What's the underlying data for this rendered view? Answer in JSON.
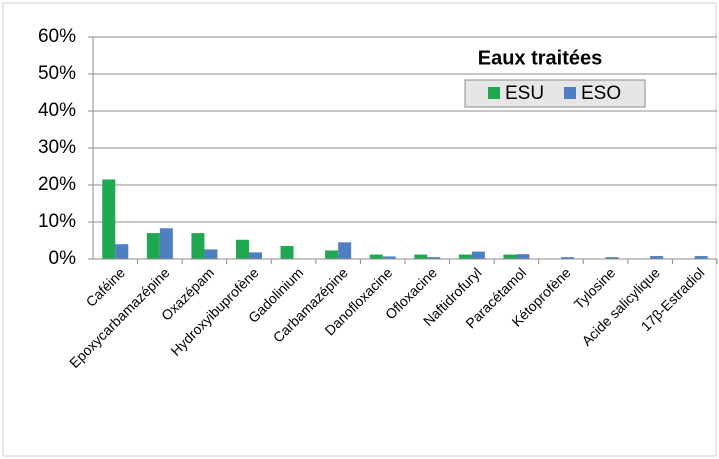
{
  "chart_data": {
    "type": "bar",
    "legend_title": "Eaux traitées",
    "categories": [
      "Caféine",
      "Epoxycarbamazépine",
      "Oxazépam",
      "Hydroxyibuprofène",
      "Gadolinium",
      "Carbamazépine",
      "Danofloxacine",
      "Ofloxacine",
      "Naftidrofuryl",
      "Paracétamol",
      "Kétoprofène",
      "Tylosine",
      "Acide salicylique",
      "17β-Estradiol"
    ],
    "series": [
      {
        "name": "ESU",
        "color": "#1fa84f",
        "values": [
          21.5,
          7,
          7,
          5.2,
          3.5,
          2.3,
          1.2,
          1.2,
          1.2,
          1.2,
          0,
          0,
          0,
          0
        ]
      },
      {
        "name": "ESO",
        "color": "#4f7fc0",
        "values": [
          4,
          8.3,
          2.6,
          1.8,
          0,
          4.5,
          0.7,
          0.5,
          2,
          1.3,
          0.5,
          0.5,
          0.8,
          0.8
        ]
      }
    ],
    "ylim": [
      0,
      60
    ],
    "yticks": [
      {
        "value": 0,
        "label": "0%"
      },
      {
        "value": 10,
        "label": "10%"
      },
      {
        "value": 20,
        "label": "20%"
      },
      {
        "value": 30,
        "label": "30%"
      },
      {
        "value": 40,
        "label": "40%"
      },
      {
        "value": 50,
        "label": "50%"
      },
      {
        "value": 60,
        "label": "60%"
      }
    ],
    "grid": true,
    "legend": "upper right"
  }
}
